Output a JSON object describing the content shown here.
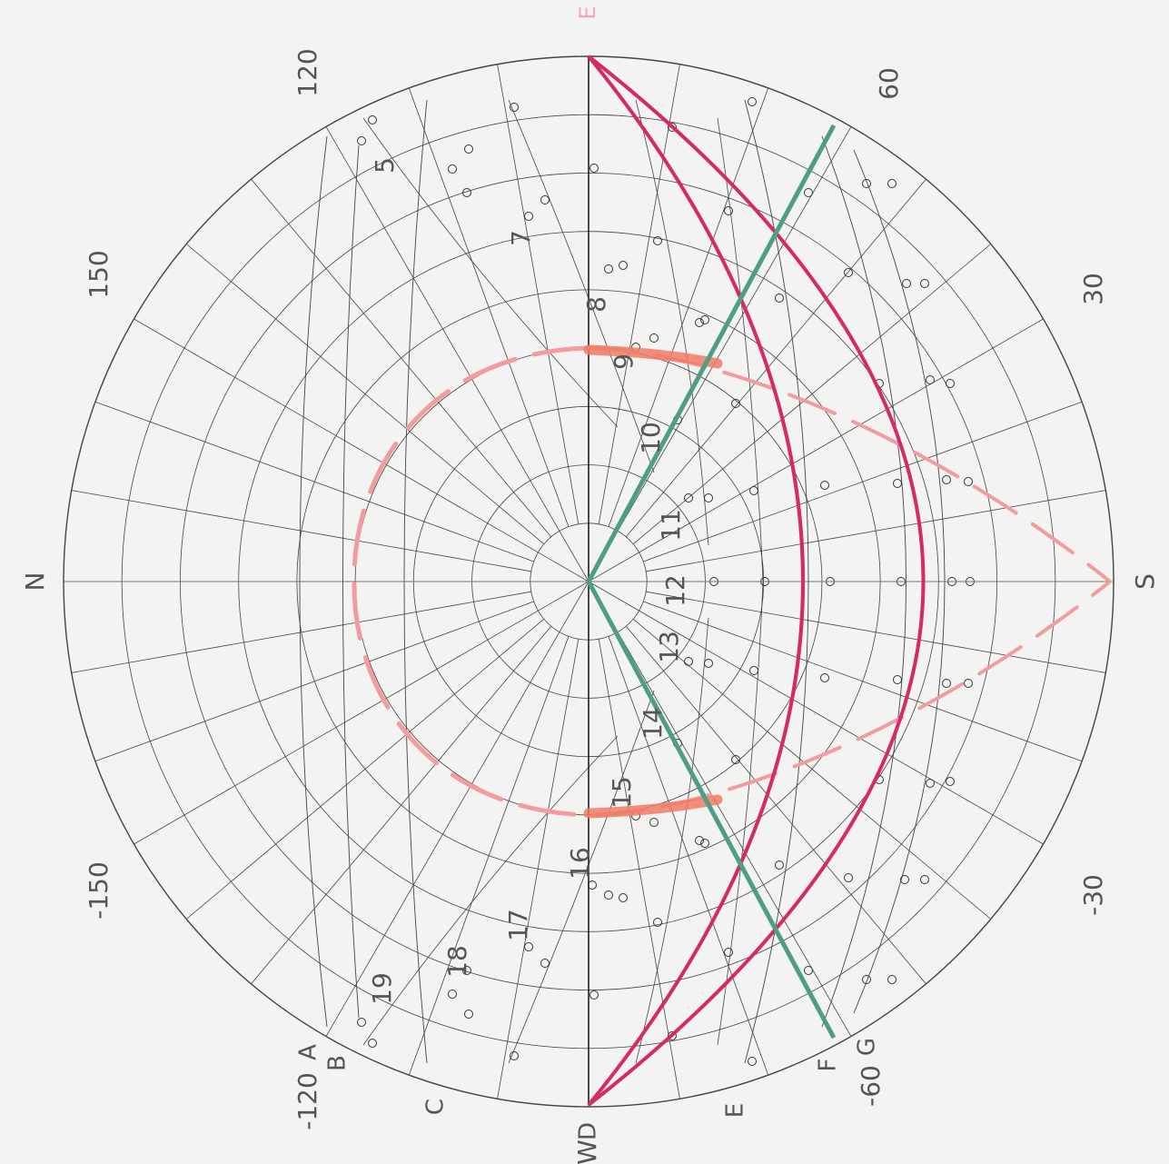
{
  "compass": {
    "north": "N",
    "south": "S",
    "east": "E",
    "west": "W"
  },
  "azimuth_labels": [
    "150",
    "120",
    "60",
    "30",
    "-30",
    "-60",
    "-120",
    "-150"
  ],
  "hour_labels": [
    "5",
    "7",
    "8",
    "9",
    "10",
    "11",
    "12",
    "13",
    "14",
    "15",
    "16",
    "17",
    "18",
    "19"
  ],
  "curve_letters": [
    "A",
    "B",
    "C",
    "D",
    "E",
    "F",
    "G"
  ],
  "colors": {
    "background": "#f3f3f1",
    "grid": "#444444",
    "axis": "#222222",
    "crimson": "#d42a66",
    "teal": "#4d9e84",
    "salmon": "#f39ca0",
    "salmon_band": "#f07a66",
    "label": "#555555",
    "east_label": "#f2a6c0"
  },
  "icons": {
    "marker": "circle-marker-icon"
  }
}
